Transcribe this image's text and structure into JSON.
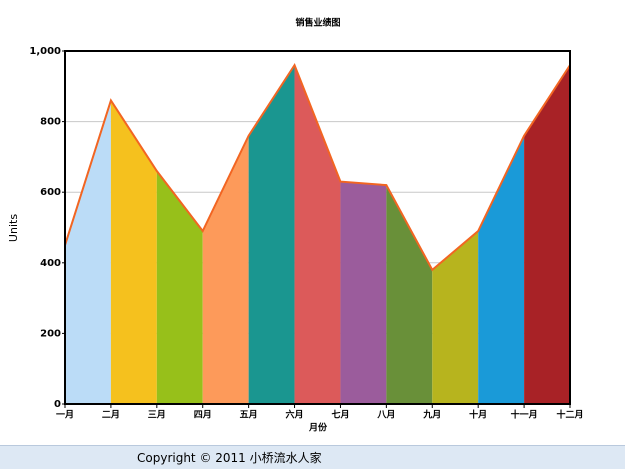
{
  "chart_data": {
    "type": "segmented-area",
    "title": "销售业绩图",
    "y_label": "Units",
    "x_label": "月份",
    "categories": [
      "一月",
      "二月",
      "三月",
      "四月",
      "五月",
      "六月",
      "七月",
      "八月",
      "九月",
      "十月",
      "十一月",
      "十二月"
    ],
    "values": [
      450,
      860,
      660,
      490,
      760,
      960,
      630,
      620,
      380,
      490,
      760,
      960
    ],
    "segment_colors": [
      "#bbdcf7",
      "#f5c11e",
      "#97c01a",
      "#fd9a5a",
      "#1a9690",
      "#dc5a5a",
      "#9b5c9c",
      "#699039",
      "#b7b41e",
      "#1a9ad8",
      "#a82226"
    ],
    "line_color": "#f26522",
    "ylim": [
      0,
      1000
    ],
    "yticks": [
      0,
      200,
      400,
      600,
      800,
      {
        "value": 1000,
        "label": "1,000"
      }
    ],
    "grid": true
  },
  "footer": "Copyright © 2011 小桥流水人家"
}
